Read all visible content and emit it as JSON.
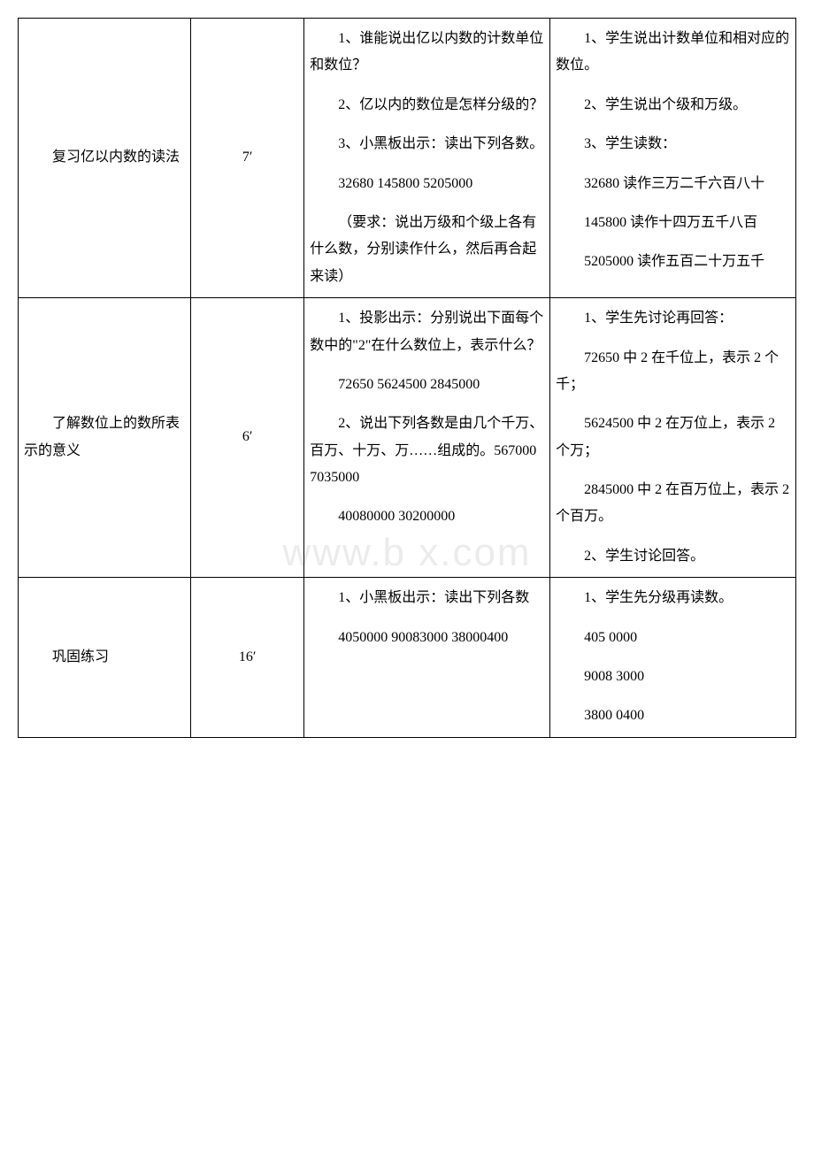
{
  "watermark": "www.b    x.com",
  "rows": [
    {
      "c1": [
        "复习亿以内数的读法"
      ],
      "c2": "7′",
      "c3": [
        "1、谁能说出亿以内数的计数单位和数位？",
        "2、亿以内的数位是怎样分级的？",
        "3、小黑板出示：读出下列各数。",
        "32680 145800 5205000",
        "（要求：说出万级和个级上各有什么数，分别读作什么，然后再合起来读）"
      ],
      "c4": [
        "1、学生说出计数单位和相对应的数位。",
        "2、学生说出个级和万级。",
        "3、学生读数：",
        "32680 读作三万二千六百八十",
        "145800 读作十四万五千八百",
        "5205000 读作五百二十万五千"
      ]
    },
    {
      "c1": [
        "了解数位上的数所表示的意义"
      ],
      "c2": "6′",
      "c3": [
        "1、投影出示：分别说出下面每个数中的\"2\"在什么数位上，表示什么？",
        "72650 5624500 2845000",
        "",
        "2、说出下列各数是由几个千万、百万、十万、万……组成的。567000 7035000",
        "40080000 30200000"
      ],
      "c4": [
        "1、学生先讨论再回答：",
        "72650 中 2 在千位上，表示 2 个千；",
        "5624500 中 2 在万位上，表示 2 个万；",
        "2845000 中 2 在百万位上，表示 2 个百万。",
        "2、学生讨论回答。"
      ]
    },
    {
      "c1": [
        "巩固练习"
      ],
      "c2": "16′",
      "c3": [
        "1、小黑板出示：读出下列各数",
        "4050000 90083000 38000400"
      ],
      "c4": [
        "1、学生先分级再读数。",
        "405 0000",
        "9008 3000",
        "3800 0400"
      ]
    }
  ]
}
